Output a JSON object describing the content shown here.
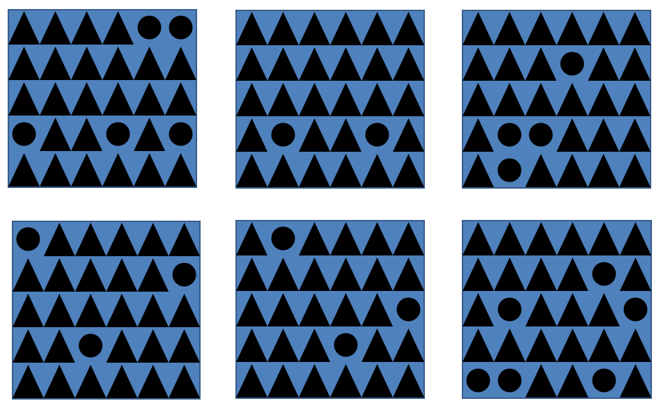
{
  "colors": {
    "page_background": "#ffffff",
    "panel_fill": "#4f81bd",
    "panel_border": "#385d8a",
    "shape_fill": "#000000"
  },
  "shape_names": {
    "T": "triangle",
    "C": "circle"
  },
  "panels": [
    {
      "rows": [
        [
          "T",
          "T",
          "T",
          "T",
          "C",
          "C"
        ],
        [
          "T",
          "T",
          "T",
          "T",
          "T",
          "T"
        ],
        [
          "T",
          "T",
          "T",
          "T",
          "T",
          "T"
        ],
        [
          "C",
          "T",
          "T",
          "C",
          "T",
          "C"
        ],
        [
          "T",
          "T",
          "T",
          "T",
          "T",
          "T"
        ]
      ]
    },
    {
      "rows": [
        [
          "T",
          "T",
          "T",
          "T",
          "T",
          "T"
        ],
        [
          "T",
          "T",
          "T",
          "T",
          "T",
          "T"
        ],
        [
          "T",
          "T",
          "T",
          "T",
          "T",
          "T"
        ],
        [
          "T",
          "C",
          "T",
          "T",
          "C",
          "T"
        ],
        [
          "T",
          "T",
          "T",
          "T",
          "T",
          "T"
        ]
      ]
    },
    {
      "rows": [
        [
          "T",
          "T",
          "T",
          "T",
          "T",
          "T"
        ],
        [
          "T",
          "T",
          "T",
          "C",
          "T",
          "T"
        ],
        [
          "T",
          "T",
          "T",
          "T",
          "T",
          "T"
        ],
        [
          "T",
          "C",
          "C",
          "T",
          "T",
          "T"
        ],
        [
          "T",
          "C",
          "T",
          "T",
          "T",
          "T"
        ]
      ]
    },
    {
      "rows": [
        [
          "C",
          "T",
          "T",
          "T",
          "T",
          "T"
        ],
        [
          "T",
          "T",
          "T",
          "T",
          "T",
          "C"
        ],
        [
          "T",
          "T",
          "T",
          "T",
          "T",
          "T"
        ],
        [
          "T",
          "T",
          "C",
          "T",
          "T",
          "T"
        ],
        [
          "T",
          "T",
          "T",
          "T",
          "T",
          "T"
        ]
      ]
    },
    {
      "rows": [
        [
          "T",
          "C",
          "T",
          "T",
          "T",
          "T"
        ],
        [
          "T",
          "T",
          "T",
          "T",
          "T",
          "T"
        ],
        [
          "T",
          "T",
          "T",
          "T",
          "T",
          "C"
        ],
        [
          "T",
          "T",
          "T",
          "C",
          "T",
          "T"
        ],
        [
          "T",
          "T",
          "T",
          "T",
          "T",
          "T"
        ]
      ]
    },
    {
      "rows": [
        [
          "T",
          "T",
          "T",
          "T",
          "T",
          "T"
        ],
        [
          "T",
          "T",
          "T",
          "T",
          "C",
          "T"
        ],
        [
          "T",
          "C",
          "T",
          "T",
          "T",
          "C"
        ],
        [
          "T",
          "T",
          "T",
          "T",
          "T",
          "T"
        ],
        [
          "C",
          "C",
          "T",
          "T",
          "C",
          "T"
        ]
      ]
    }
  ]
}
